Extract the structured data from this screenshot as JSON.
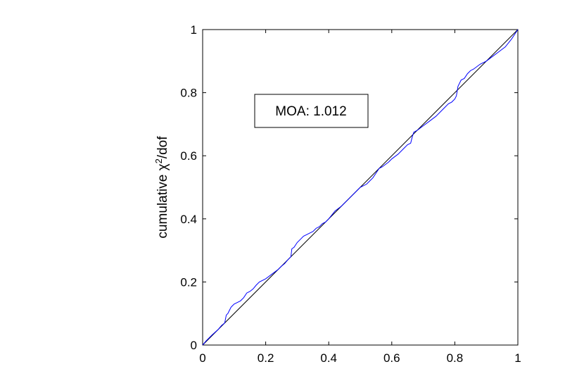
{
  "chart_data": {
    "type": "line",
    "xlabel": "",
    "ylabel": {
      "prefix": "cumulative ",
      "symbol": "χ",
      "superscript": "2",
      "suffix": "/dof"
    },
    "xlim": [
      0,
      1
    ],
    "ylim": [
      0,
      1
    ],
    "x_ticks": [
      "0",
      "0.2",
      "0.4",
      "0.6",
      "0.8",
      "1"
    ],
    "y_ticks": [
      "0",
      "0.2",
      "0.4",
      "0.6",
      "0.8",
      "1"
    ],
    "grid": false,
    "annotation": "MOA: 1.012",
    "colors": {
      "reference": "#000000",
      "cumulative": "#0000ff"
    },
    "series": [
      {
        "x": [
          0,
          1
        ],
        "y": [
          0,
          1
        ]
      },
      {
        "x": [
          0,
          0.01,
          0.02,
          0.03,
          0.05,
          0.06,
          0.07,
          0.075,
          0.08,
          0.085,
          0.09,
          0.095,
          0.1,
          0.11,
          0.12,
          0.13,
          0.14,
          0.15,
          0.16,
          0.17,
          0.18,
          0.2,
          0.22,
          0.24,
          0.25,
          0.26,
          0.27,
          0.28,
          0.283,
          0.29,
          0.3,
          0.31,
          0.32,
          0.33,
          0.34,
          0.35,
          0.36,
          0.37,
          0.38,
          0.39,
          0.4,
          0.42,
          0.44,
          0.45,
          0.46,
          0.47,
          0.48,
          0.49,
          0.5,
          0.52,
          0.54,
          0.55,
          0.56,
          0.57,
          0.59,
          0.6,
          0.62,
          0.63,
          0.64,
          0.65,
          0.66,
          0.665,
          0.67,
          0.68,
          0.7,
          0.72,
          0.74,
          0.76,
          0.77,
          0.78,
          0.79,
          0.8,
          0.805,
          0.81,
          0.82,
          0.83,
          0.84,
          0.85,
          0.86,
          0.88,
          0.9,
          0.92,
          0.94,
          0.96,
          0.98,
          1.0
        ],
        "y": [
          0,
          0.012,
          0.022,
          0.032,
          0.05,
          0.062,
          0.07,
          0.095,
          0.1,
          0.11,
          0.12,
          0.125,
          0.13,
          0.135,
          0.14,
          0.15,
          0.165,
          0.17,
          0.178,
          0.19,
          0.2,
          0.21,
          0.225,
          0.24,
          0.25,
          0.258,
          0.27,
          0.28,
          0.305,
          0.31,
          0.325,
          0.335,
          0.345,
          0.35,
          0.355,
          0.36,
          0.37,
          0.375,
          0.385,
          0.39,
          0.4,
          0.425,
          0.44,
          0.45,
          0.46,
          0.47,
          0.48,
          0.49,
          0.5,
          0.51,
          0.53,
          0.545,
          0.56,
          0.565,
          0.58,
          0.59,
          0.605,
          0.615,
          0.625,
          0.635,
          0.64,
          0.66,
          0.675,
          0.68,
          0.695,
          0.71,
          0.725,
          0.745,
          0.755,
          0.765,
          0.77,
          0.78,
          0.79,
          0.82,
          0.84,
          0.845,
          0.86,
          0.87,
          0.875,
          0.89,
          0.9,
          0.915,
          0.93,
          0.945,
          0.97,
          1.0
        ]
      }
    ]
  }
}
